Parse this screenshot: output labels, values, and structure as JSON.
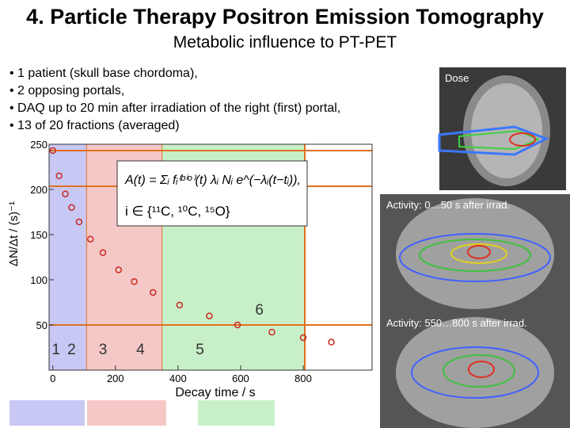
{
  "header": {
    "title": "4. Particle Therapy Positron Emission Tomography",
    "subtitle": "Metabolic influence to PT-PET"
  },
  "bullets": [
    "1 patient (skull base chordoma),",
    "2 opposing portals,",
    "DAQ up to 20 min after irradiation of the right (first) portal,",
    "13 of 20 fractions (averaged)"
  ],
  "images": {
    "dose": "Dose",
    "activity_early": "Activity: 0…50 s after irrad.",
    "activity_late": "Activity: 550…800 s after irrad."
  },
  "formula": {
    "main": "A(t) = Σᵢ fᵢ⁽ᵇⁱᵒ⁾(t) λᵢ Nᵢ e^(−λᵢ(t−tᵢ)),",
    "set": "i ∈ {¹¹C, ¹⁰C, ¹⁵O}"
  },
  "chart_data": {
    "type": "scatter",
    "x_label": "Decay time / s",
    "y_label": "ΔN/Δt / (s)⁻¹",
    "x": [
      0,
      20,
      40,
      60,
      84,
      120,
      160,
      210,
      260,
      320,
      405,
      500,
      590,
      700,
      800,
      890
    ],
    "series": [
      {
        "color": "#c8281e",
        "values": [
          243,
          215,
          195,
          180,
          164,
          145,
          130,
          111,
          98,
          86,
          72,
          60,
          50,
          42,
          36,
          31
        ]
      }
    ],
    "xlim": [
      -12,
      1020
    ],
    "ylim": [
      0,
      250
    ],
    "xticks": [
      0,
      200,
      400,
      600,
      800
    ],
    "yticks": [
      50,
      100,
      150,
      200,
      250
    ],
    "regions": [
      {
        "from": -12,
        "to": 109,
        "color": "#c8c8f5"
      },
      {
        "from": 109,
        "to": 350,
        "color": "#f5c8c8"
      },
      {
        "from": 350,
        "to": 805,
        "color": "#c8f0c8"
      }
    ],
    "region_labels": [
      {
        "label": "1",
        "x": 10
      },
      {
        "label": "2",
        "x": 60
      },
      {
        "label": "3",
        "x": 160
      },
      {
        "label": "4",
        "x": 280
      },
      {
        "label": "5",
        "x": 470
      },
      {
        "label": "6",
        "x": 660
      }
    ]
  }
}
